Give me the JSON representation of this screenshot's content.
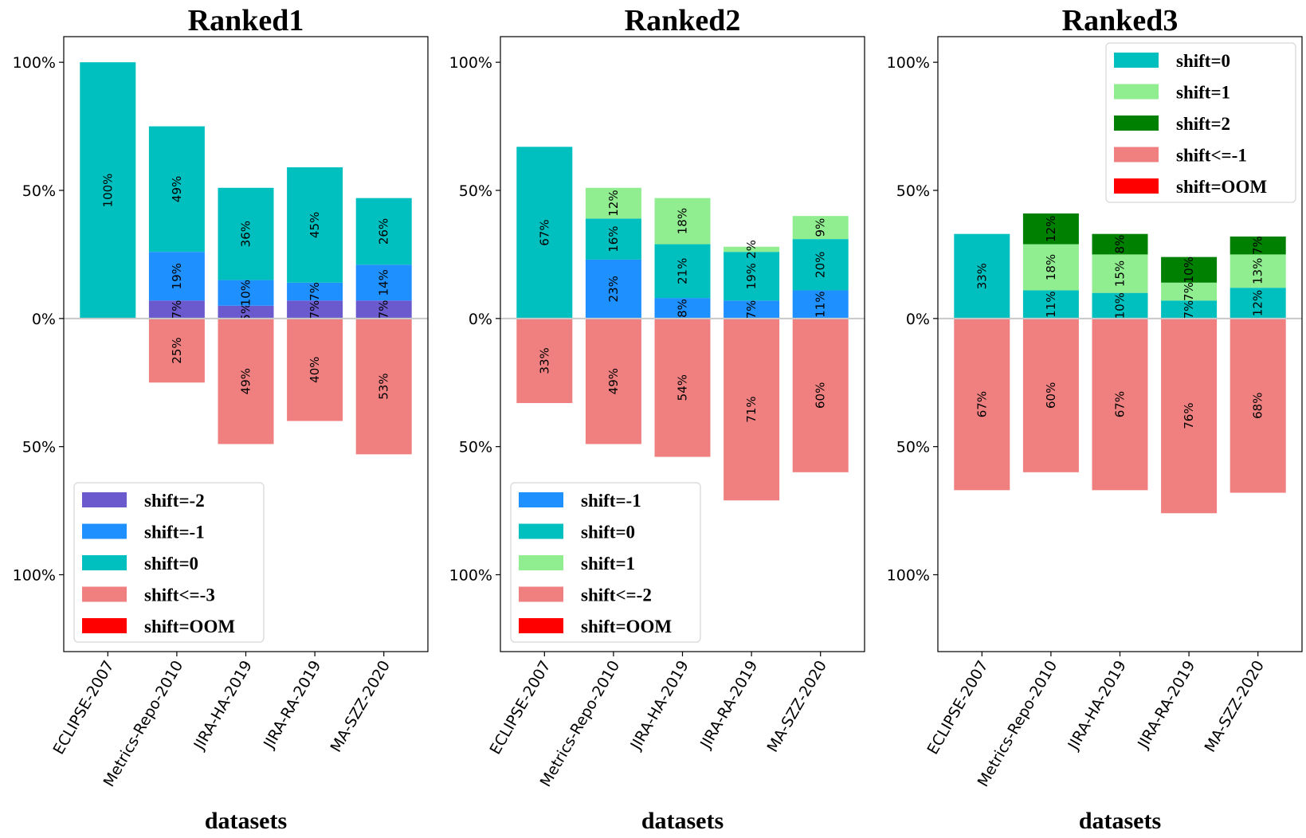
{
  "chart_data": [
    {
      "type": "bar",
      "title": "Ranked1",
      "xlabel": "datasets",
      "ylabel": "",
      "ylim": [
        -130,
        110
      ],
      "yticks": [
        100,
        50,
        0,
        -50,
        -100
      ],
      "ytick_labels": [
        "100%",
        "50%",
        "0%",
        "50%",
        "100%"
      ],
      "categories": [
        "ECLIPSE-2007",
        "Metrics-Repo-2010",
        "JIRA-HA-2019",
        "JIRA-RA-2019",
        "MA-SZZ-2020"
      ],
      "legend_position": "lower-left",
      "legend": [
        {
          "name": "shift=-2",
          "color": "#6a5acd"
        },
        {
          "name": "shift=-1",
          "color": "#1e90ff"
        },
        {
          "name": "shift=0",
          "color": "#00bfbf"
        },
        {
          "name": "shift<=-3",
          "color": "#f08080"
        },
        {
          "name": "shift=OOM",
          "color": "#ff0000"
        }
      ],
      "series": [
        {
          "name": "shift=-2",
          "color": "#6a5acd",
          "values": [
            0,
            7,
            5,
            7,
            7
          ],
          "labels": [
            "",
            "7%",
            "5%",
            "7%",
            "7%"
          ]
        },
        {
          "name": "shift=-1",
          "color": "#1e90ff",
          "values": [
            0,
            19,
            10,
            7,
            14
          ],
          "labels": [
            "",
            "19%",
            "10%",
            "7%",
            "14%"
          ]
        },
        {
          "name": "shift=0",
          "color": "#00bfbf",
          "values": [
            100,
            49,
            36,
            45,
            26
          ],
          "labels": [
            "100%",
            "49%",
            "36%",
            "45%",
            "26%"
          ]
        },
        {
          "name": "shift<=-3",
          "color": "#f08080",
          "values": [
            0,
            -25,
            -49,
            -40,
            -53
          ],
          "labels": [
            "",
            "25%",
            "49%",
            "40%",
            "53%"
          ]
        }
      ]
    },
    {
      "type": "bar",
      "title": "Ranked2",
      "xlabel": "datasets",
      "ylabel": "",
      "ylim": [
        -130,
        110
      ],
      "yticks": [
        100,
        50,
        0,
        -50,
        -100
      ],
      "ytick_labels": [
        "100%",
        "50%",
        "0%",
        "50%",
        "100%"
      ],
      "categories": [
        "ECLIPSE-2007",
        "Metrics-Repo-2010",
        "JIRA-HA-2019",
        "JIRA-RA-2019",
        "MA-SZZ-2020"
      ],
      "legend_position": "lower-left",
      "legend": [
        {
          "name": "shift=-1",
          "color": "#1e90ff"
        },
        {
          "name": "shift=0",
          "color": "#00bfbf"
        },
        {
          "name": "shift=1",
          "color": "#90ee90"
        },
        {
          "name": "shift<=-2",
          "color": "#f08080"
        },
        {
          "name": "shift=OOM",
          "color": "#ff0000"
        }
      ],
      "series": [
        {
          "name": "shift=-1",
          "color": "#1e90ff",
          "values": [
            0,
            23,
            8,
            7,
            11
          ],
          "labels": [
            "",
            "23%",
            "8%",
            "7%",
            "11%"
          ]
        },
        {
          "name": "shift=0",
          "color": "#00bfbf",
          "values": [
            67,
            16,
            21,
            19,
            20
          ],
          "labels": [
            "67%",
            "16%",
            "21%",
            "19%",
            "20%"
          ]
        },
        {
          "name": "shift=1",
          "color": "#90ee90",
          "values": [
            0,
            12,
            18,
            2,
            9
          ],
          "labels": [
            "",
            "12%",
            "18%",
            "2%",
            "9%"
          ]
        },
        {
          "name": "shift<=-2",
          "color": "#f08080",
          "values": [
            -33,
            -49,
            -54,
            -71,
            -60
          ],
          "labels": [
            "33%",
            "49%",
            "54%",
            "71%",
            "60%"
          ]
        }
      ]
    },
    {
      "type": "bar",
      "title": "Ranked3",
      "xlabel": "datasets",
      "ylabel": "",
      "ylim": [
        -130,
        110
      ],
      "yticks": [
        100,
        50,
        0,
        -50,
        -100
      ],
      "ytick_labels": [
        "100%",
        "50%",
        "0%",
        "50%",
        "100%"
      ],
      "categories": [
        "ECLIPSE-2007",
        "Metrics-Repo-2010",
        "JIRA-HA-2019",
        "JIRA-RA-2019",
        "MA-SZZ-2020"
      ],
      "legend_position": "upper-right",
      "legend": [
        {
          "name": "shift=0",
          "color": "#00bfbf"
        },
        {
          "name": "shift=1",
          "color": "#90ee90"
        },
        {
          "name": "shift=2",
          "color": "#008000"
        },
        {
          "name": "shift<=-1",
          "color": "#f08080"
        },
        {
          "name": "shift=OOM",
          "color": "#ff0000"
        }
      ],
      "series": [
        {
          "name": "shift=0",
          "color": "#00bfbf",
          "values": [
            33,
            11,
            10,
            7,
            12
          ],
          "labels": [
            "33%",
            "11%",
            "10%",
            "7%",
            "12%"
          ]
        },
        {
          "name": "shift=1",
          "color": "#90ee90",
          "values": [
            0,
            18,
            15,
            7,
            13
          ],
          "labels": [
            "",
            "18%",
            "15%",
            "7%",
            "13%"
          ]
        },
        {
          "name": "shift=2",
          "color": "#008000",
          "values": [
            0,
            12,
            8,
            10,
            7
          ],
          "labels": [
            "",
            "12%",
            "8%",
            "10%",
            "7%"
          ]
        },
        {
          "name": "shift<=-1",
          "color": "#f08080",
          "values": [
            -67,
            -60,
            -67,
            -76,
            -68
          ],
          "labels": [
            "67%",
            "60%",
            "67%",
            "76%",
            "68%"
          ]
        }
      ]
    }
  ]
}
